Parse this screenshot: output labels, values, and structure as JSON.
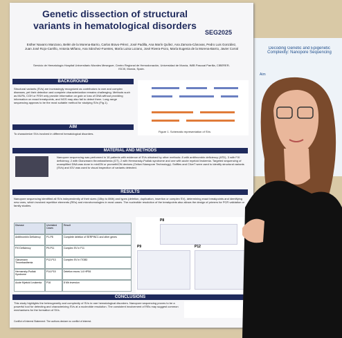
{
  "poster": {
    "title": "Genetic dissection of structural variants in hematological disorders",
    "logo": "SEG2025",
    "authors": "Esther Navarro Manzano, Belén de la Morena-Barrio, Carlos Bravo-Pérez, José Padilla, Ana Marín Quílez, Ana Zamora-Cánovas, Pedro Luis González, Juan José Rojo-Carrillo, Antonia Miñano, Ana Sánchez-Fuentes, María Luisa Lozano, José Rivera-Pozo, María Eugenia de la Morena-Barrio, Javier Corral",
    "affiliation": "Servicio de Hematología Hospital Universitario Morales Meseguer, Centro Regional de Hemodonación, Universidad de Murcia, IMIB Pascual Parrilla, CIBERER-ISCIII, Murcia, Spain.",
    "background": {
      "heading": "BACKGROUND",
      "text": "Structural variants (SVs) are increasingly recognized as contributors to rare and complex diseases, yet their detection and complete characterization remains challenging. Methods such as MLPA, CGH or FISH only provide information on gain or loss of DNA without providing information on exact breakpoints, and NGS may also fail to detect them. Long-range sequencing appears to be the most suitable method for studying SVs (Fig.1).",
      "figure_caption": "Figure 1. Schematic representation of SVs"
    },
    "aim": {
      "heading": "AIM",
      "text": "To characterize SVs involved in different hematological disorders."
    },
    "methods": {
      "heading": "MATERIAL AND METHODS",
      "text": "Nanopore sequencing was performed in 16 patients with evidence of SVs obtained by other methods: 8 with antithrombin deficiency (ATD), 3 with FXI deficiency, 2 with Glanzmann thrombasthenia (GT), 2 with Hermansky-Pudlak syndrome and one with acute myeloid leukemia. Targeted sequencing of unamplified DNA was done in minION or promethION devices (Oxford Nanopore Technology). Sniffles and CliveT were used to identify structural variants (SVs) and IGV was used to visual inspection of variants detected."
    },
    "results": {
      "heading": "RESULTS",
      "text": "Nanopore sequencing identified all SVs independently of their sizes (15bp to 8Mb) and types (deletion, duplication, insertion or complex SV), determining exact breakpoints and identifying new ones, which involved repetitive elements (REs) and microhomologies in most cases. The nucleotide resolution of the breakpoints also allows the design of primers for PCR validation or family studies."
    },
    "table": {
      "header": [
        "Disease",
        "Unrelated Cases",
        "Result"
      ],
      "rows": [
        [
          "Antithrombin Deficiency",
          "P1-P8",
          "Complete deletion of SERPINC1 and other genes"
        ],
        [
          "FXI Deficiency",
          "P9-P11",
          "Complex SV in F11"
        ],
        [
          "Glanzmann Thrombasthenia",
          "P12-P13",
          "Complex SV in ITGB3"
        ],
        [
          "Hermansky-Pudlak Syndrome",
          "P14-P15",
          "Deletion exons 1-6 HPS6"
        ],
        [
          "Acute Myeloid Leukemia",
          "P16",
          "8 Mb inversion"
        ]
      ]
    },
    "figure_labels": [
      "P8",
      "P9",
      "P12"
    ],
    "conclusions": {
      "heading": "CONCLUSIONS",
      "text": "This study highlights the heterogeneity and complexity of SVs in rare hematological disorders. Nanopore sequencing proves to be a powerful tool for detecting and characterizing SVs at a nucleotide resolution. The consistent involvement of REs may suggest common mechanisms for the formation of SVs."
    },
    "footer": "Conflict of Interest Statement: The authors declare no conflict of interest."
  },
  "side_poster": {
    "title": "Decoding Genetic and Epigenetic Complexity: Nanopore Sequencing",
    "section": "Aim"
  }
}
